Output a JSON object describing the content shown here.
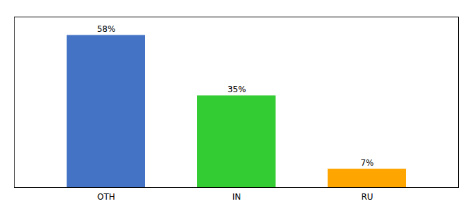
{
  "chart_data": {
    "type": "bar",
    "categories": [
      "OTH",
      "IN",
      "RU"
    ],
    "values": [
      58,
      35,
      7
    ],
    "value_labels": [
      "58%",
      "35%",
      "7%"
    ],
    "colors": [
      "#4472C4",
      "#33CC33",
      "#FFA500"
    ],
    "ylim": [
      0,
      65
    ],
    "yticks": [],
    "data_labels": true,
    "tick_labels": "x",
    "grid": false
  }
}
